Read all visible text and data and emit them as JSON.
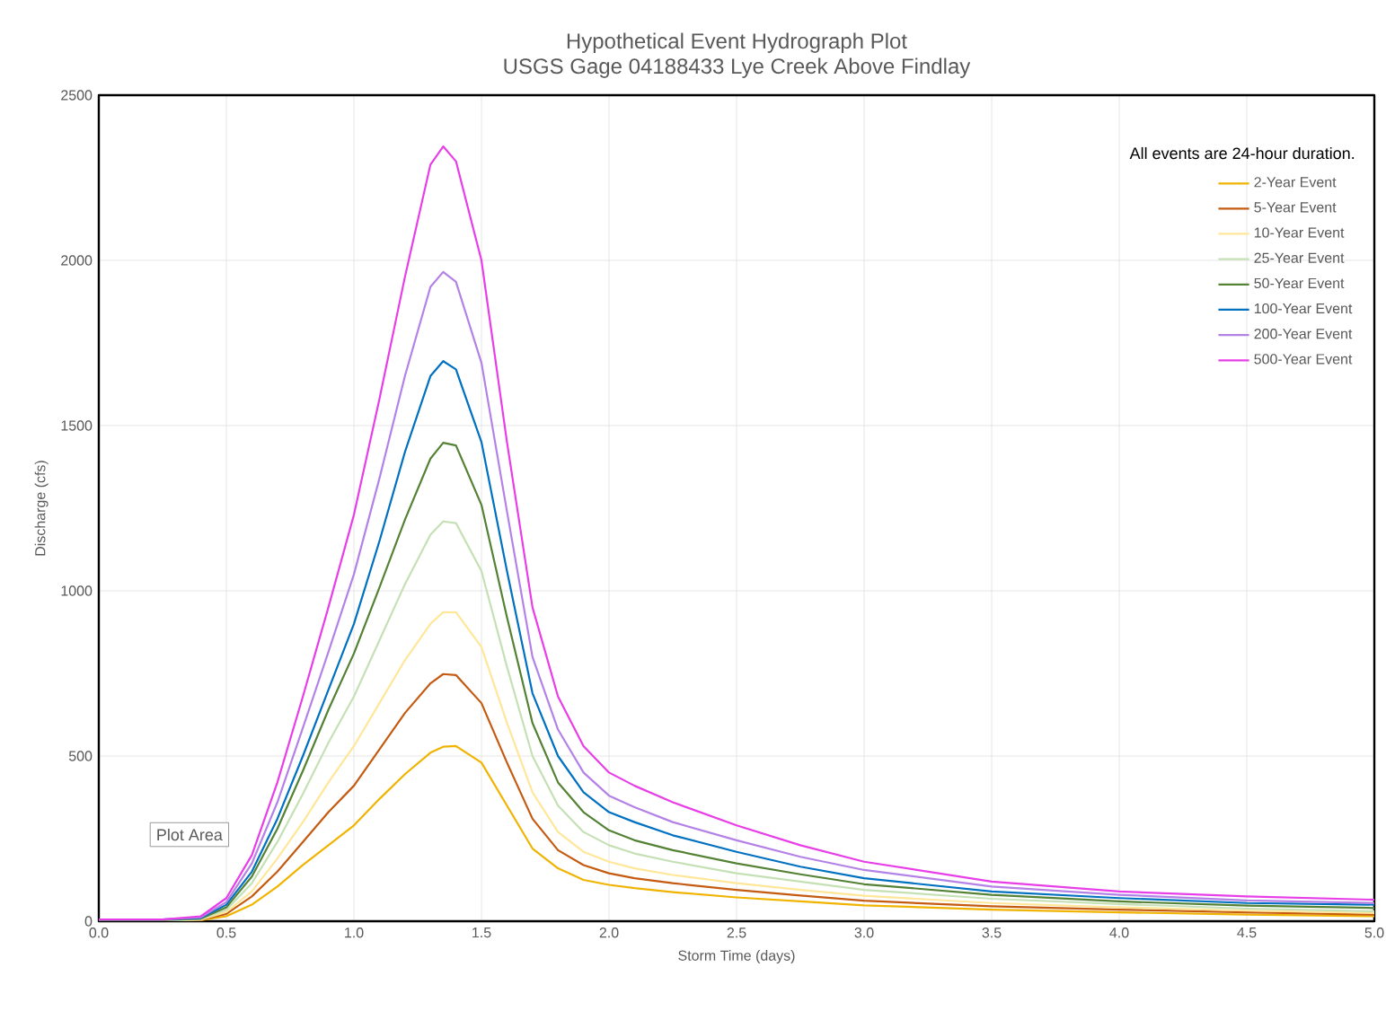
{
  "chart_data": {
    "type": "line",
    "title": "Hypothetical Event Hydrograph Plot",
    "subtitle": "USGS Gage 04188433 Lye Creek Above Findlay",
    "xlabel": "Storm Time (days)",
    "ylabel": "Discharge (cfs)",
    "legend_title": "All events are 24-hour duration.",
    "annotations": [
      "Plot Area"
    ],
    "x": [
      0,
      0.25,
      0.4,
      0.5,
      0.6,
      0.7,
      0.8,
      0.9,
      1.0,
      1.1,
      1.2,
      1.3,
      1.35,
      1.4,
      1.5,
      1.6,
      1.7,
      1.8,
      1.9,
      2.0,
      2.1,
      2.25,
      2.5,
      2.75,
      3.0,
      3.5,
      4.0,
      4.5,
      5.0
    ],
    "series": [
      {
        "name": "2-Year Event",
        "color": "#f0b400",
        "values": [
          0,
          0,
          3,
          15,
          50,
          105,
          170,
          230,
          290,
          370,
          445,
          510,
          528,
          530,
          480,
          350,
          220,
          160,
          125,
          110,
          100,
          88,
          72,
          60,
          48,
          35,
          27,
          20,
          15
        ]
      },
      {
        "name": "5-Year Event",
        "color": "#c55a11",
        "values": [
          0,
          0,
          4,
          22,
          75,
          150,
          240,
          330,
          410,
          520,
          630,
          720,
          748,
          745,
          660,
          480,
          310,
          215,
          170,
          145,
          130,
          115,
          95,
          78,
          62,
          45,
          35,
          27,
          20
        ]
      },
      {
        "name": "10-Year Event",
        "color": "#ffe699",
        "values": [
          0,
          0,
          5,
          28,
          90,
          190,
          300,
          420,
          530,
          660,
          790,
          900,
          935,
          935,
          830,
          600,
          390,
          270,
          210,
          180,
          160,
          140,
          115,
          95,
          77,
          55,
          42,
          32,
          25
        ]
      },
      {
        "name": "25-Year Event",
        "color": "#c5e0b4",
        "values": [
          2,
          2,
          6,
          35,
          115,
          240,
          385,
          540,
          680,
          850,
          1020,
          1170,
          1210,
          1205,
          1060,
          770,
          500,
          350,
          270,
          230,
          205,
          180,
          145,
          120,
          95,
          68,
          52,
          38,
          30
        ]
      },
      {
        "name": "50-Year Event",
        "color": "#548235",
        "values": [
          3,
          3,
          8,
          42,
          135,
          280,
          455,
          640,
          810,
          1010,
          1215,
          1400,
          1448,
          1440,
          1260,
          920,
          600,
          420,
          330,
          275,
          245,
          215,
          175,
          142,
          112,
          80,
          60,
          47,
          40
        ]
      },
      {
        "name": "100-Year Event",
        "color": "#0070c0",
        "values": [
          5,
          5,
          10,
          50,
          150,
          310,
          500,
          700,
          900,
          1150,
          1420,
          1650,
          1695,
          1670,
          1450,
          1060,
          690,
          500,
          390,
          330,
          300,
          260,
          210,
          165,
          130,
          90,
          70,
          55,
          50
        ]
      },
      {
        "name": "200-Year Event",
        "color": "#b482e6",
        "values": [
          5,
          5,
          12,
          58,
          175,
          360,
          585,
          815,
          1050,
          1340,
          1650,
          1920,
          1965,
          1935,
          1690,
          1240,
          800,
          580,
          450,
          380,
          345,
          300,
          245,
          195,
          155,
          105,
          80,
          63,
          55
        ]
      },
      {
        "name": "500-Year Event",
        "color": "#e83ee8",
        "values": [
          5,
          5,
          15,
          70,
          200,
          420,
          680,
          950,
          1230,
          1580,
          1950,
          2290,
          2345,
          2300,
          2000,
          1450,
          950,
          680,
          530,
          450,
          410,
          360,
          290,
          230,
          180,
          120,
          90,
          75,
          65
        ]
      }
    ],
    "xlim": [
      0,
      5
    ],
    "ylim": [
      0,
      2500
    ],
    "xticks": [
      {
        "value": 0,
        "label": "0.0"
      },
      {
        "value": 0.5,
        "label": "0.5"
      },
      {
        "value": 1,
        "label": "1.0"
      },
      {
        "value": 1.5,
        "label": "1.5"
      },
      {
        "value": 2,
        "label": "2.0"
      },
      {
        "value": 2.5,
        "label": "2.5"
      },
      {
        "value": 3,
        "label": "3.0"
      },
      {
        "value": 3.5,
        "label": "3.5"
      },
      {
        "value": 4,
        "label": "4.0"
      },
      {
        "value": 4.5,
        "label": "4.5"
      },
      {
        "value": 5,
        "label": "5.0"
      }
    ],
    "yticks": [
      0,
      500,
      1000,
      1500,
      2000,
      2500
    ],
    "grid": true,
    "legend": "top right",
    "marker": "none",
    "line_style": "solid"
  }
}
